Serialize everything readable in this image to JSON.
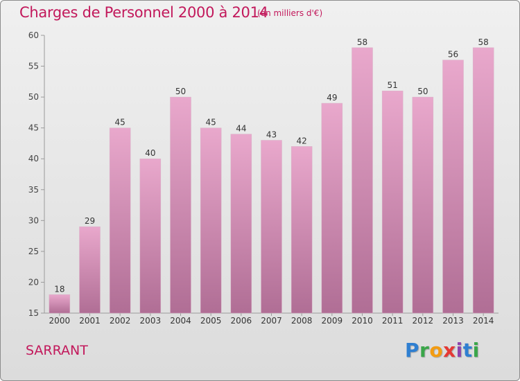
{
  "header": {
    "title": "Charges de Personnel 2000 à 2014",
    "subtitle": "(en milliers d'€)"
  },
  "footer": {
    "commune": "SARRANT",
    "logo": "Proxiti"
  },
  "colors": {
    "title": "#c2185b",
    "bar_top": "#e9a8cc",
    "bar_bottom": "#b06e95",
    "background": "#e6e6e6"
  },
  "chart_data": {
    "type": "bar",
    "title": "Charges de Personnel 2000 à 2014",
    "subtitle": "(en milliers d'€)",
    "xlabel": "",
    "ylabel": "",
    "categories": [
      "2000",
      "2001",
      "2002",
      "2003",
      "2004",
      "2005",
      "2006",
      "2007",
      "2008",
      "2009",
      "2010",
      "2011",
      "2012",
      "2013",
      "2014"
    ],
    "values": [
      18,
      29,
      45,
      40,
      50,
      45,
      44,
      43,
      42,
      49,
      58,
      51,
      50,
      56,
      58
    ],
    "ylim": [
      15,
      60
    ],
    "yticks": [
      15,
      20,
      25,
      30,
      35,
      40,
      45,
      50,
      55,
      60
    ],
    "grid": false,
    "legend": "none"
  }
}
